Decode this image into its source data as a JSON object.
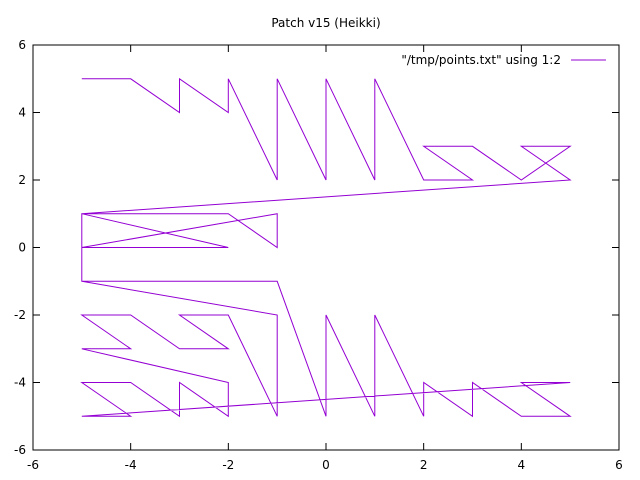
{
  "chart_data": {
    "type": "line",
    "title": "Patch v15 (Heikki)",
    "xlabel": "",
    "ylabel": "",
    "xlim": [
      -6,
      6
    ],
    "ylim": [
      -6,
      6
    ],
    "xticks": [
      "-6",
      "-4",
      "-2",
      "0",
      "2",
      "4",
      "6"
    ],
    "yticks": [
      "6",
      "4",
      "2",
      "0",
      "-2",
      "-4",
      "-6"
    ],
    "grid": false,
    "legend_position": "top-right",
    "series": [
      {
        "name": "\"/tmp/points.txt\" using 1:2",
        "color": "#9400d3",
        "points": [
          [
            -5,
            5
          ],
          [
            -4,
            5
          ],
          [
            -3,
            4
          ],
          [
            -3,
            5
          ],
          [
            -2,
            4
          ],
          [
            -2,
            5
          ],
          [
            -1,
            2
          ],
          [
            -1,
            5
          ],
          [
            0,
            2
          ],
          [
            0,
            5
          ],
          [
            1,
            2
          ],
          [
            1,
            5
          ],
          [
            2,
            2
          ],
          [
            3,
            2
          ],
          [
            2,
            3
          ],
          [
            3,
            3
          ],
          [
            4,
            2
          ],
          [
            5,
            3
          ],
          [
            4,
            3
          ],
          [
            5,
            2
          ],
          [
            -5,
            1
          ],
          [
            -2,
            1
          ],
          [
            -1,
            0
          ],
          [
            -1,
            1
          ],
          [
            -5,
            0
          ],
          [
            -2,
            0
          ],
          [
            -5,
            1
          ],
          [
            -5,
            -1
          ],
          [
            -1,
            -1
          ],
          [
            0,
            -5
          ],
          [
            0,
            -2
          ],
          [
            1,
            -5
          ],
          [
            1,
            -2
          ],
          [
            2,
            -5
          ],
          [
            2,
            -4
          ],
          [
            3,
            -5
          ],
          [
            3,
            -4
          ],
          [
            4,
            -5
          ],
          [
            5,
            -5
          ],
          [
            4,
            -4
          ],
          [
            5,
            -4
          ],
          [
            -5,
            -5
          ],
          [
            -4,
            -5
          ],
          [
            -5,
            -4
          ],
          [
            -4,
            -4
          ],
          [
            -3,
            -5
          ],
          [
            -3,
            -4
          ],
          [
            -2,
            -5
          ],
          [
            -2,
            -4
          ],
          [
            -5,
            -3
          ],
          [
            -4,
            -3
          ],
          [
            -5,
            -2
          ],
          [
            -4,
            -2
          ],
          [
            -3,
            -3
          ],
          [
            -2,
            -3
          ],
          [
            -3,
            -2
          ],
          [
            -2,
            -2
          ],
          [
            -1,
            -5
          ],
          [
            -1,
            -2
          ],
          [
            -5,
            -1
          ]
        ]
      }
    ]
  }
}
